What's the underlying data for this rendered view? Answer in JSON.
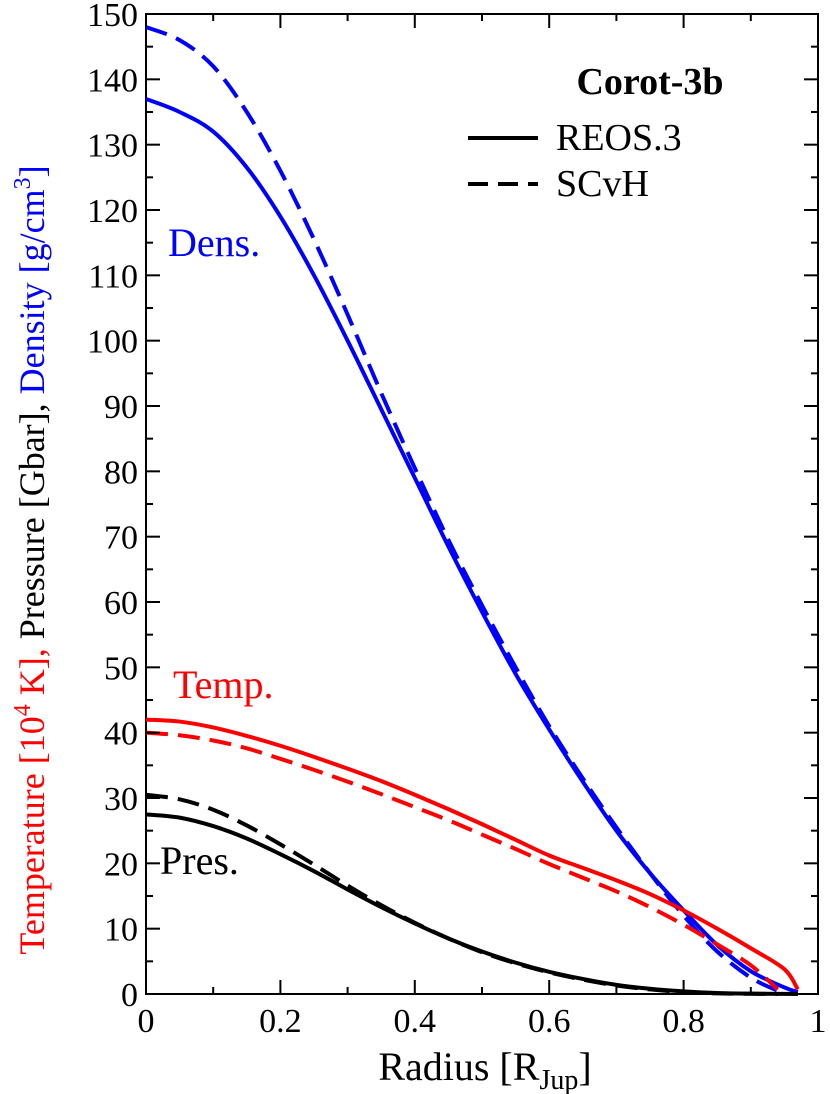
{
  "chart_data": {
    "type": "line",
    "title": "Corot-3b",
    "xlabel": {
      "main": "Radius [R",
      "sub": "Jup",
      "end": "]"
    },
    "ylabel": {
      "temp_part": "Temperature [10",
      "temp_sup": "4",
      "temp_end": " K],",
      "pres_part": " Pressure [Gbar],",
      "dens_part": " Density [g/cm",
      "dens_sup": "3",
      "dens_end": "]"
    },
    "xlim": [
      0,
      1
    ],
    "ylim": [
      0,
      150
    ],
    "xticks": [
      "0",
      "0.2",
      "0.4",
      "0.6",
      "0.8",
      "1"
    ],
    "yticks": [
      "0",
      "10",
      "20",
      "30",
      "40",
      "50",
      "60",
      "70",
      "80",
      "90",
      "100",
      "110",
      "120",
      "130",
      "140",
      "150"
    ],
    "grid": false,
    "legend": {
      "position": "top-right",
      "entries": [
        {
          "label": "REOS.3",
          "style": "solid"
        },
        {
          "label": "SCvH",
          "style": "dashed"
        }
      ]
    },
    "annotations": [
      {
        "text": "Dens.",
        "color": "#0000ff"
      },
      {
        "text": "Temp.",
        "color": "#ff0000"
      },
      {
        "text": "Pres.",
        "color": "#000000"
      }
    ],
    "colors": {
      "density": "#0000ff",
      "temperature": "#ff0000",
      "pressure": "#000000"
    },
    "series": [
      {
        "quantity": "density",
        "style": "solid",
        "color": "#0000ff",
        "x": [
          0,
          0.05,
          0.1,
          0.15,
          0.2,
          0.25,
          0.3,
          0.35,
          0.4,
          0.45,
          0.5,
          0.55,
          0.6,
          0.65,
          0.7,
          0.75,
          0.8,
          0.85,
          0.9,
          0.95,
          0.97
        ],
        "y": [
          137,
          135,
          132,
          126.5,
          119,
          110,
          100,
          89.5,
          79,
          68.5,
          58.5,
          49,
          40.5,
          32.5,
          25,
          18.5,
          12.8,
          7.5,
          3.5,
          1.0,
          0.3
        ]
      },
      {
        "quantity": "density",
        "style": "dashed",
        "color": "#0000ff",
        "x": [
          0,
          0.05,
          0.1,
          0.15,
          0.2,
          0.25,
          0.3,
          0.35,
          0.4,
          0.45,
          0.5,
          0.55,
          0.6,
          0.65,
          0.7,
          0.75,
          0.8,
          0.85,
          0.9,
          0.94
        ],
        "y": [
          148,
          146,
          142,
          135,
          126,
          115.5,
          104,
          92,
          80.5,
          69.5,
          59.5,
          50,
          41,
          33,
          25.5,
          18.5,
          12,
          6.5,
          2.5,
          0.5
        ]
      },
      {
        "quantity": "temperature",
        "style": "solid",
        "color": "#ff0000",
        "x": [
          0,
          0.05,
          0.1,
          0.15,
          0.2,
          0.25,
          0.3,
          0.35,
          0.4,
          0.45,
          0.5,
          0.55,
          0.6,
          0.65,
          0.7,
          0.75,
          0.8,
          0.85,
          0.9,
          0.95,
          0.97
        ],
        "y": [
          42,
          41.7,
          40.8,
          39.5,
          38,
          36.3,
          34.5,
          32.6,
          30.5,
          28.3,
          26,
          23.6,
          21.2,
          19.3,
          17.4,
          15.3,
          12.8,
          10,
          7,
          3.8,
          0.7
        ]
      },
      {
        "quantity": "temperature",
        "style": "dashed",
        "color": "#ff0000",
        "x": [
          0,
          0.05,
          0.1,
          0.15,
          0.2,
          0.25,
          0.3,
          0.35,
          0.4,
          0.45,
          0.5,
          0.55,
          0.6,
          0.65,
          0.7,
          0.75,
          0.8,
          0.85,
          0.9,
          0.94
        ],
        "y": [
          40,
          39.6,
          38.8,
          37.6,
          36,
          34.3,
          32.5,
          30.6,
          28.6,
          26.6,
          24.4,
          22.2,
          19.9,
          17.8,
          15.7,
          13.3,
          10.6,
          7.6,
          4.4,
          0.7
        ]
      },
      {
        "quantity": "pressure",
        "style": "solid",
        "color": "#000000",
        "x": [
          0,
          0.05,
          0.1,
          0.15,
          0.2,
          0.25,
          0.3,
          0.35,
          0.4,
          0.45,
          0.5,
          0.55,
          0.6,
          0.65,
          0.7,
          0.75,
          0.8,
          0.85,
          0.9,
          0.95,
          0.97
        ],
        "y": [
          27.5,
          27,
          25.7,
          23.8,
          21.4,
          18.8,
          16,
          13.3,
          10.8,
          8.5,
          6.5,
          4.8,
          3.4,
          2.3,
          1.4,
          0.8,
          0.4,
          0.15,
          0.05,
          0.01,
          0
        ]
      },
      {
        "quantity": "pressure",
        "style": "dashed",
        "color": "#000000",
        "x": [
          0,
          0.05,
          0.1,
          0.15,
          0.2,
          0.25,
          0.3,
          0.35,
          0.4,
          0.45,
          0.5,
          0.55,
          0.6,
          0.65,
          0.7,
          0.75,
          0.8,
          0.85,
          0.9,
          0.94
        ],
        "y": [
          30.5,
          29.8,
          28.2,
          25.8,
          22.9,
          19.8,
          16.6,
          13.6,
          10.9,
          8.5,
          6.4,
          4.7,
          3.3,
          2.2,
          1.3,
          0.7,
          0.3,
          0.1,
          0.03,
          0
        ]
      }
    ]
  }
}
